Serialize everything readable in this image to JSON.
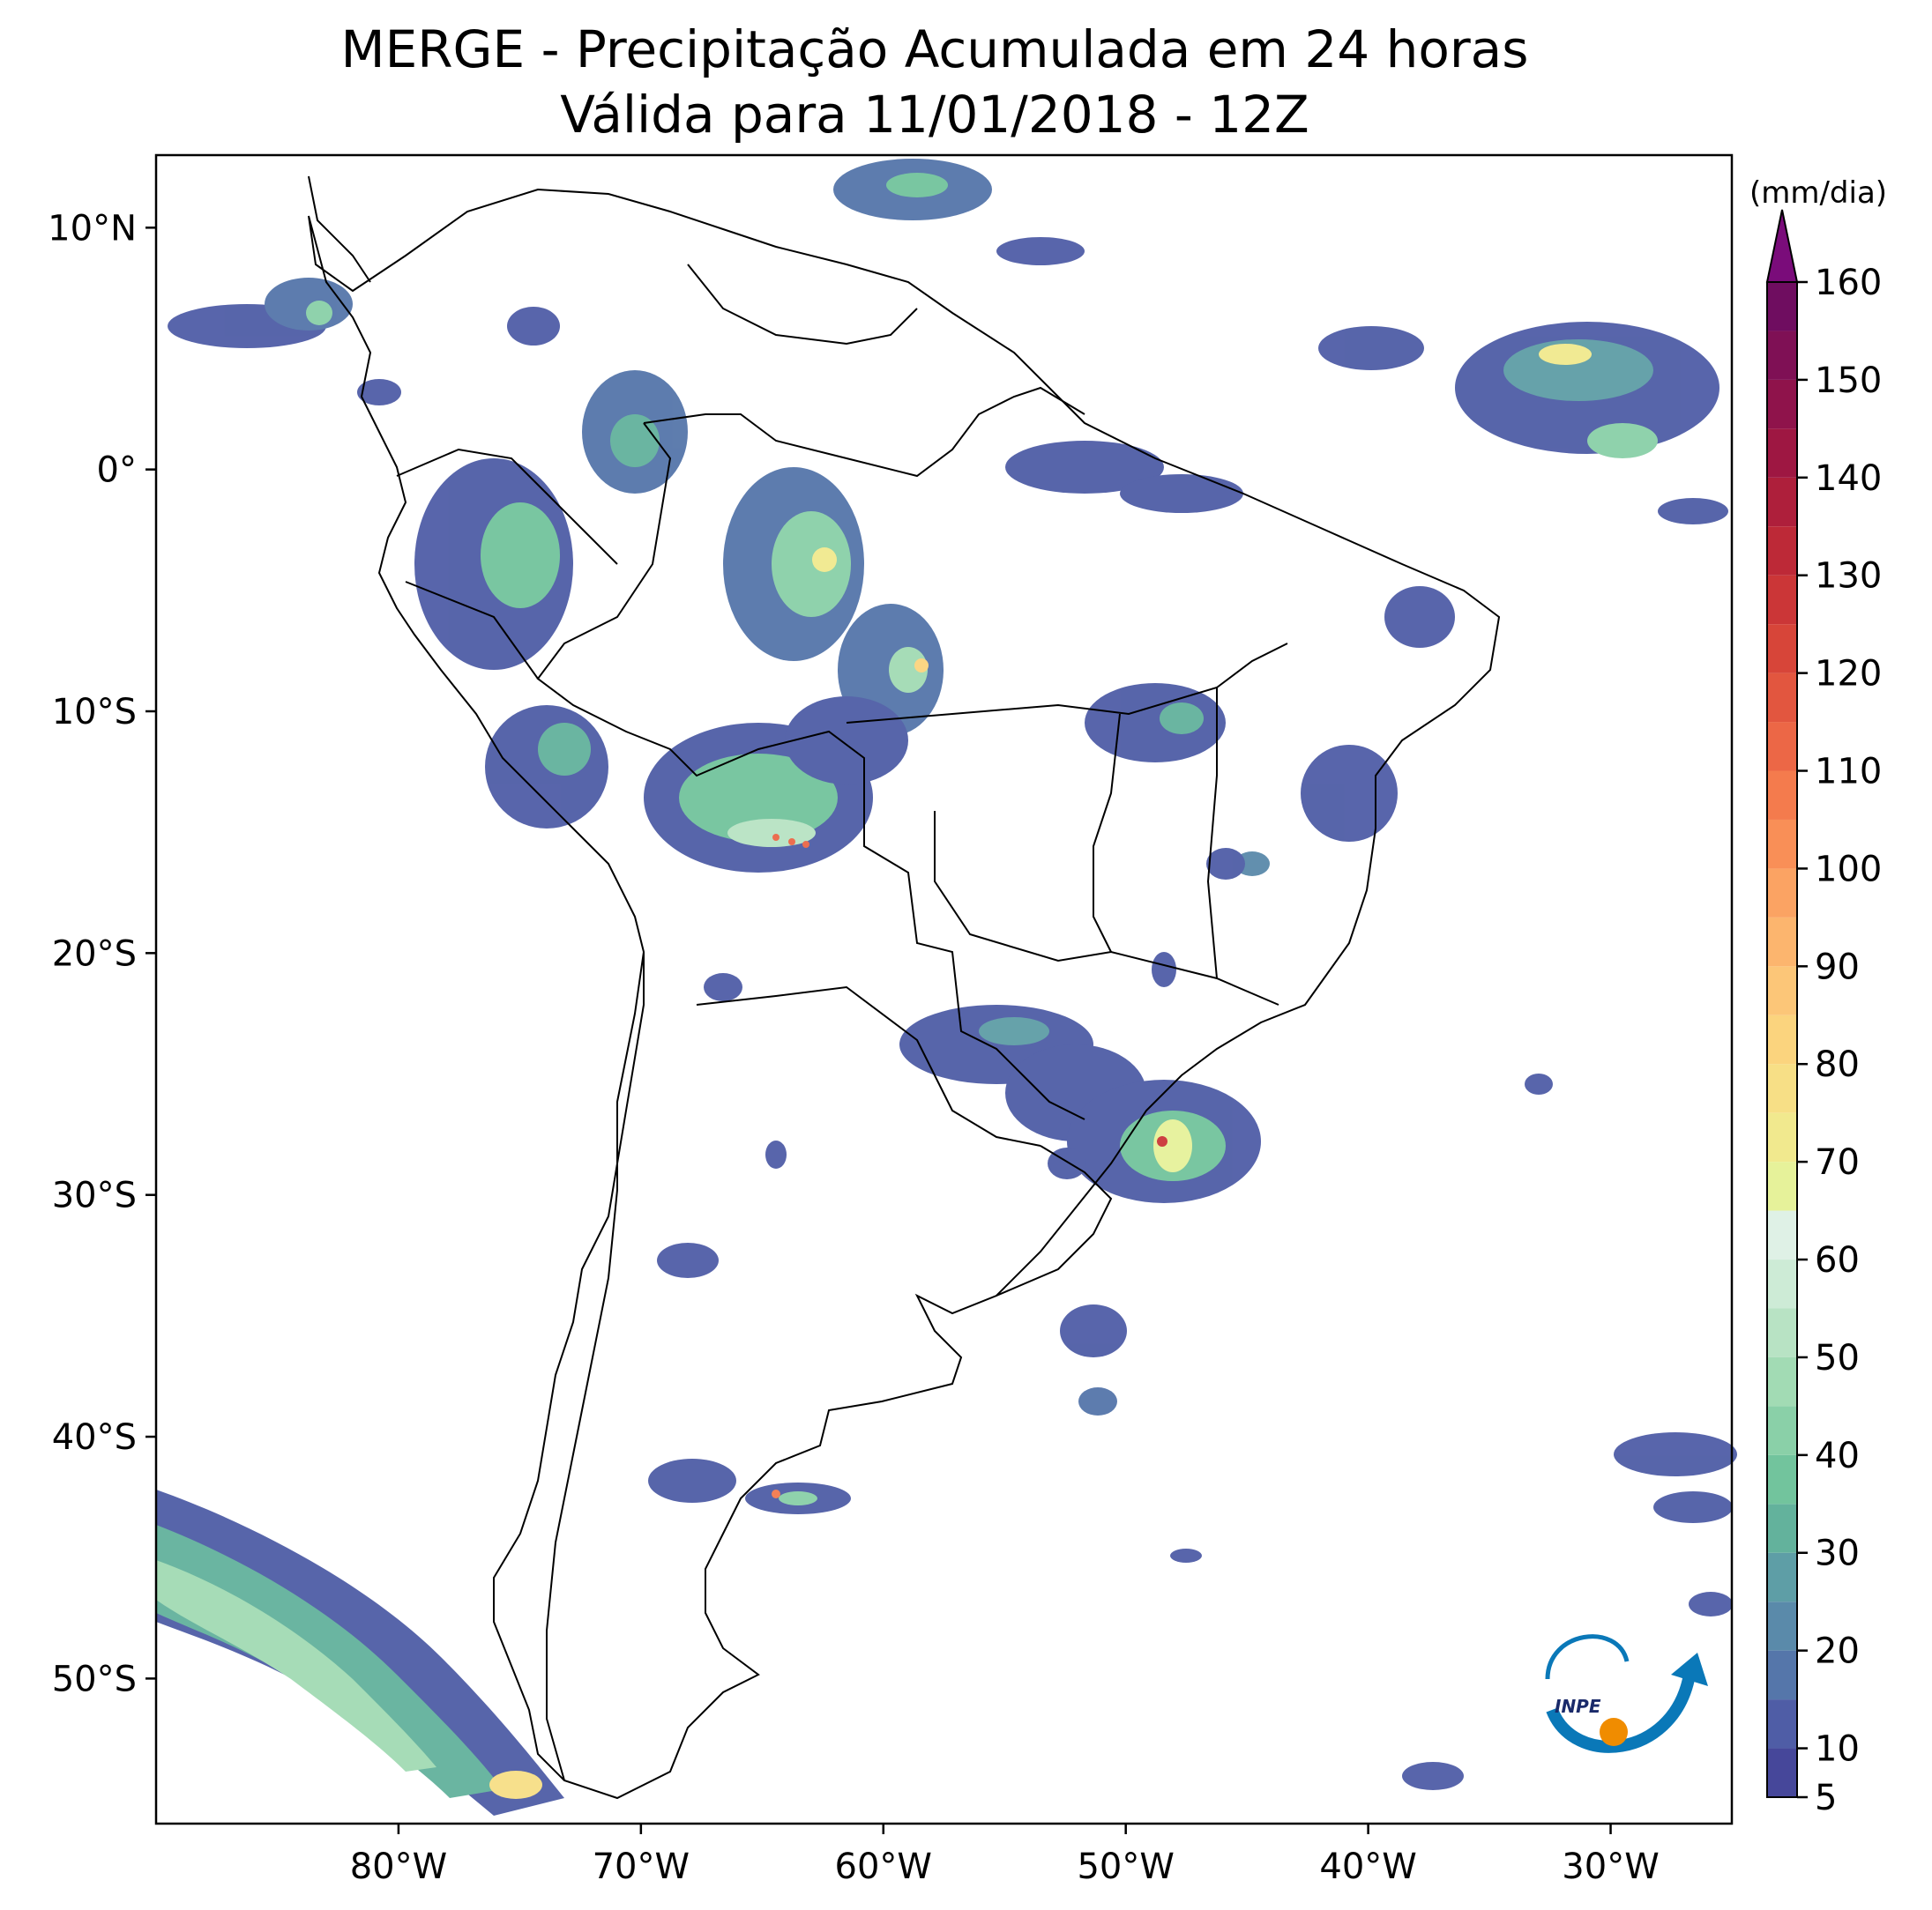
{
  "title": {
    "line1": "MERGE - Precipitação Acumulada em 24 horas",
    "line2": "Válida para 11/01/2018 - 12Z"
  },
  "map": {
    "lon_range": [
      -90,
      -25
    ],
    "lat_range": [
      -56,
      13
    ],
    "lon_ticks": [
      {
        "value": -80,
        "label": "80°W"
      },
      {
        "value": -70,
        "label": "70°W"
      },
      {
        "value": -60,
        "label": "60°W"
      },
      {
        "value": -50,
        "label": "50°W"
      },
      {
        "value": -40,
        "label": "40°W"
      },
      {
        "value": -30,
        "label": "30°W"
      }
    ],
    "lat_ticks": [
      {
        "value": 10,
        "label": "10°N"
      },
      {
        "value": 0,
        "label": "0°"
      },
      {
        "value": -10,
        "label": "10°S"
      },
      {
        "value": -20,
        "label": "20°S"
      },
      {
        "value": -30,
        "label": "30°S"
      },
      {
        "value": -40,
        "label": "40°S"
      },
      {
        "value": -50,
        "label": "50°S"
      }
    ]
  },
  "colorbar": {
    "unit": "(mm/dia)",
    "levels": [
      5,
      10,
      15,
      20,
      25,
      30,
      35,
      40,
      45,
      50,
      55,
      60,
      65,
      70,
      75,
      80,
      85,
      90,
      95,
      100,
      105,
      110,
      115,
      120,
      125,
      130,
      135,
      140,
      145,
      150,
      155,
      160
    ],
    "colors": [
      "#46479a",
      "#4f5da6",
      "#5576aa",
      "#5a8aaa",
      "#5e9ea6",
      "#63b29c",
      "#72c49d",
      "#8ad0a8",
      "#a2dbb4",
      "#b8e3c4",
      "#cdebd6",
      "#dff1e6",
      "#e6f29a",
      "#f1e98e",
      "#f7df86",
      "#fbd47e",
      "#fcc678",
      "#fcb56e",
      "#fba363",
      "#f98f57",
      "#f47b4d",
      "#ec6746",
      "#e2563f",
      "#d74539",
      "#cb3637",
      "#bd2937",
      "#ae1f3b",
      "#9e1742",
      "#8f134b",
      "#7f1055",
      "#6f0d60"
    ],
    "extend_color": "#7a0c7a",
    "tick_labels": [
      "5",
      "10",
      "20",
      "30",
      "40",
      "50",
      "60",
      "70",
      "80",
      "90",
      "100",
      "110",
      "120",
      "130",
      "140",
      "150",
      "160"
    ]
  },
  "logo": {
    "text": "INPE",
    "colors": {
      "blue": "#0a78b8",
      "orange": "#f08c00"
    }
  }
}
